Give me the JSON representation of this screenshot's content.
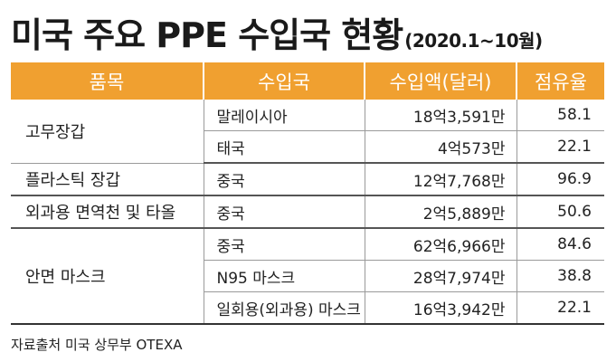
{
  "title": {
    "main": "미국 주요 PPE 수입국 현황",
    "period": "(2020.1~10월)"
  },
  "table": {
    "headers": [
      "품목",
      "수입국",
      "수입액(달러)",
      "점유율"
    ],
    "groups": [
      {
        "item": "고무장갑",
        "rows": [
          {
            "country": "말레이시아",
            "amount": "18억3,591만",
            "share": "58.1"
          },
          {
            "country": "태국",
            "amount": "4억573만",
            "share": "22.1"
          }
        ]
      },
      {
        "item": "플라스틱 장갑",
        "rows": [
          {
            "country": "중국",
            "amount": "12억7,768만",
            "share": "96.9"
          }
        ]
      },
      {
        "item": "외과용 면역천 및 타올",
        "rows": [
          {
            "country": "중국",
            "amount": "2억5,889만",
            "share": "50.6"
          }
        ]
      },
      {
        "item": "안면 마스크",
        "rows": [
          {
            "country": "중국",
            "amount": "62억6,966만",
            "share": "84.6"
          },
          {
            "country": "N95 마스크",
            "amount": "28억7,974만",
            "share": "38.8"
          },
          {
            "country": "일회용(외과용) 마스크",
            "amount": "16억3,942만",
            "share": "22.1"
          }
        ]
      }
    ]
  },
  "source": "자료출처 미국 상무부 OTEXA",
  "colors": {
    "header_bg": "#f0a030",
    "header_text": "#ffffff",
    "rule": "#9a9a9a"
  }
}
